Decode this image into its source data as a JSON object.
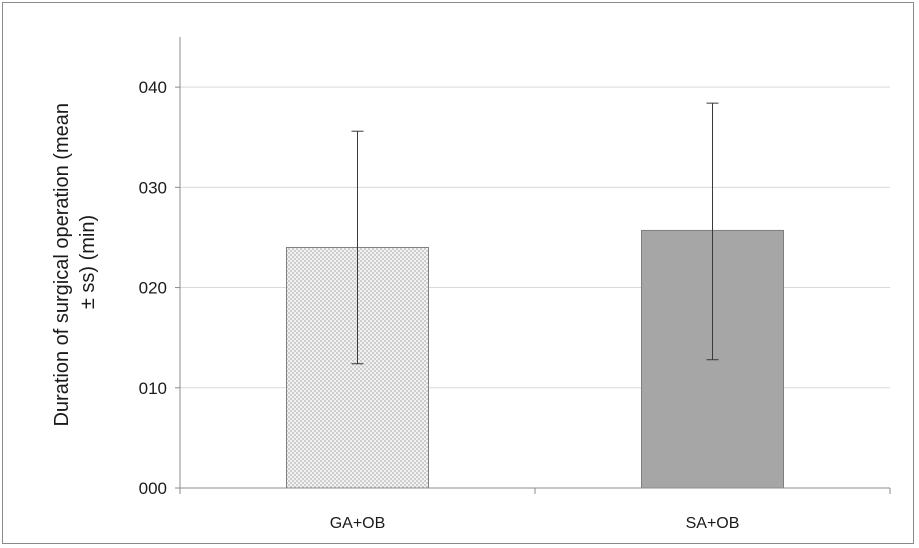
{
  "chart_data": {
    "type": "bar",
    "categories": [
      "GA+OB",
      "SA+OB"
    ],
    "values": [
      24.0,
      25.7
    ],
    "error_low": [
      12.4,
      12.8
    ],
    "error_high": [
      35.6,
      38.4
    ],
    "ylabel_line1": "Duration of surgical operation (mean",
    "ylabel_line2": "± ss) (min)",
    "xlabel": "",
    "ylim": [
      0,
      45
    ],
    "yticks": [
      0,
      10,
      20,
      30,
      40
    ],
    "ytick_labels": [
      "000",
      "010",
      "020",
      "030",
      "040"
    ],
    "grid": true,
    "bar_styles": [
      "dotted",
      "solid"
    ],
    "colors": {
      "bar_dotted_fill": "#f2f2f2",
      "bar_dotted_dots": "#9a9a9a",
      "bar_solid": "#a6a6a6",
      "bar_outline": "#7f7f7f",
      "grid": "#d9d9d9",
      "axis": "#8c8c8c",
      "error_bar": "#3a3a3a"
    }
  }
}
